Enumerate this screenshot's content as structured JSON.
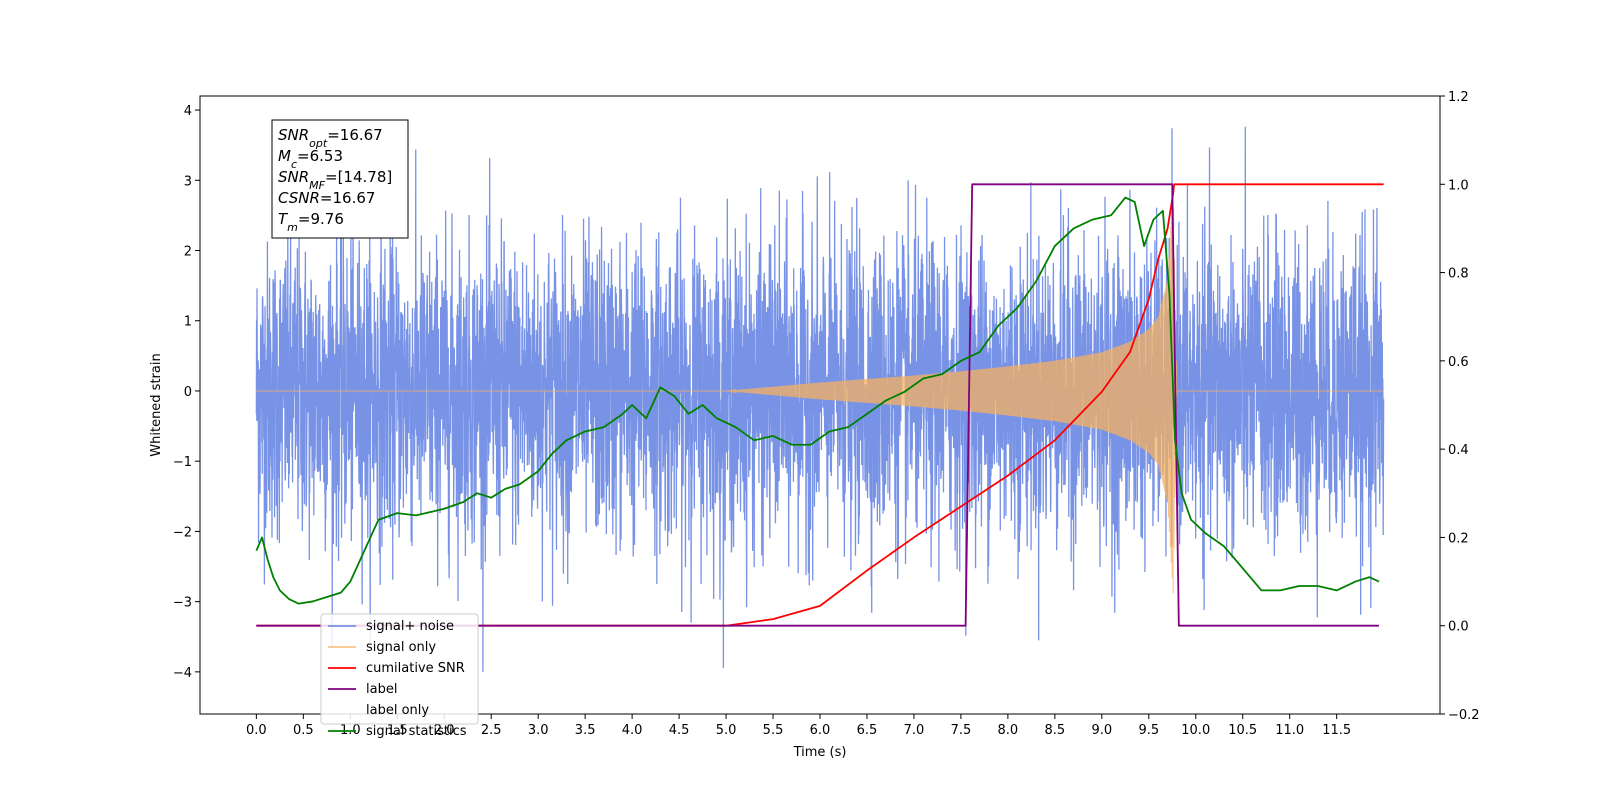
{
  "chart_data": {
    "type": "line",
    "xlabel": "Time (s)",
    "ylabel": "Whitened strain",
    "xlim": [
      -0.6,
      12.6
    ],
    "ylim": [
      -4.6,
      4.2
    ],
    "y2lim": [
      -0.2,
      1.2
    ],
    "x_ticks": [
      0.0,
      0.5,
      1.0,
      1.5,
      2.0,
      2.5,
      3.0,
      3.5,
      4.0,
      4.5,
      5.0,
      5.5,
      6.0,
      6.5,
      7.0,
      7.5,
      8.0,
      8.5,
      9.0,
      9.5,
      10.0,
      10.5,
      11.0,
      11.5
    ],
    "x_tick_labels": [
      "0.0",
      "0.5",
      "1.0",
      "1.5",
      "2.0",
      "2.5",
      "3.0",
      "3.5",
      "4.0",
      "4.5",
      "5.0",
      "5.5",
      "6.0",
      "6.5",
      "7.0",
      "7.5",
      "8.0",
      "8.5",
      "9.0",
      "9.5",
      "10.0",
      "10.5",
      "11.0",
      "11.5"
    ],
    "y_ticks": [
      -4,
      -3,
      -2,
      -1,
      0,
      1,
      2,
      3,
      4
    ],
    "y_tick_labels": [
      "−4",
      "−3",
      "−2",
      "−1",
      "0",
      "1",
      "2",
      "3",
      "4"
    ],
    "y2_ticks": [
      -0.2,
      0.0,
      0.2,
      0.4,
      0.6,
      0.8,
      1.0,
      1.2
    ],
    "y2_tick_labels": [
      "−0.2",
      "0.0",
      "0.2",
      "0.4",
      "0.6",
      "0.8",
      "1.0",
      "1.2"
    ],
    "grid": false,
    "legend_position": "lower-left",
    "annotation": {
      "lines": [
        {
          "base": "SNR",
          "sub": "opt",
          "rest": "=16.67"
        },
        {
          "base": "M",
          "sub": "c",
          "rest": "=6.53"
        },
        {
          "base": "SNR",
          "sub": "MF",
          "rest": "=[14.78]"
        },
        {
          "base": "CSNR",
          "sub": "",
          "rest": "=16.67"
        },
        {
          "base": "T",
          "sub": "m",
          "rest": "=9.76"
        }
      ]
    },
    "series": [
      {
        "name": "signal+ noise",
        "axis": "left",
        "color": "#7893e6",
        "style": "noise",
        "x_range": [
          0.0,
          12.0
        ],
        "approx_std": 1.05,
        "approx_extremes": [
          -4.0,
          3.8
        ]
      },
      {
        "name": "signal only",
        "axis": "left",
        "color": "#f5b060",
        "style": "chirp",
        "envelope_x": [
          0.0,
          5.0,
          5.5,
          6.0,
          6.5,
          7.0,
          7.5,
          8.0,
          8.5,
          9.0,
          9.3,
          9.5,
          9.6,
          9.7,
          9.76,
          9.8,
          12.0
        ],
        "envelope_y": [
          0.0,
          0.0,
          0.06,
          0.12,
          0.17,
          0.22,
          0.28,
          0.35,
          0.43,
          0.55,
          0.7,
          0.88,
          1.05,
          1.6,
          2.9,
          0.0,
          0.0
        ]
      },
      {
        "name": "cumilative SNR",
        "axis": "right",
        "color": "#ff0000",
        "x": [
          0.0,
          5.0,
          5.5,
          6.0,
          6.5,
          7.0,
          7.5,
          8.0,
          8.5,
          9.0,
          9.3,
          9.5,
          9.6,
          9.7,
          9.76,
          9.77,
          12.0
        ],
        "y": [
          0.0,
          0.0,
          0.015,
          0.045,
          0.125,
          0.2,
          0.27,
          0.34,
          0.42,
          0.53,
          0.62,
          0.74,
          0.83,
          0.9,
          0.98,
          1.0,
          1.0
        ]
      },
      {
        "name": "label",
        "axis": "right",
        "color": "#800080",
        "x": [
          0.0,
          7.55,
          7.62,
          9.75,
          9.82,
          11.95
        ],
        "y": [
          0.0,
          0.0,
          1.0,
          1.0,
          0.0,
          0.0
        ]
      },
      {
        "name": "label only",
        "axis": "right",
        "color": "#ffffff",
        "x": [],
        "y": []
      },
      {
        "name": "signal statistics",
        "axis": "right",
        "color": "#008000",
        "x": [
          0.0,
          0.06,
          0.12,
          0.18,
          0.25,
          0.35,
          0.45,
          0.6,
          0.75,
          0.9,
          1.0,
          1.15,
          1.3,
          1.5,
          1.7,
          1.9,
          2.0,
          2.2,
          2.35,
          2.5,
          2.65,
          2.8,
          3.0,
          3.15,
          3.3,
          3.5,
          3.7,
          3.9,
          4.0,
          4.15,
          4.3,
          4.45,
          4.6,
          4.75,
          4.9,
          5.1,
          5.3,
          5.5,
          5.7,
          5.9,
          6.1,
          6.3,
          6.5,
          6.7,
          6.9,
          7.1,
          7.3,
          7.5,
          7.7,
          7.9,
          8.1,
          8.3,
          8.5,
          8.7,
          8.9,
          9.1,
          9.25,
          9.35,
          9.45,
          9.55,
          9.65,
          9.72,
          9.78,
          9.85,
          9.95,
          10.1,
          10.3,
          10.5,
          10.7,
          10.9,
          11.1,
          11.3,
          11.5,
          11.7,
          11.85,
          11.95
        ],
        "y": [
          0.17,
          0.2,
          0.15,
          0.11,
          0.08,
          0.06,
          0.05,
          0.055,
          0.065,
          0.075,
          0.1,
          0.17,
          0.24,
          0.255,
          0.25,
          0.26,
          0.265,
          0.28,
          0.3,
          0.29,
          0.31,
          0.32,
          0.35,
          0.39,
          0.42,
          0.44,
          0.45,
          0.48,
          0.5,
          0.47,
          0.54,
          0.52,
          0.48,
          0.5,
          0.47,
          0.45,
          0.42,
          0.43,
          0.41,
          0.41,
          0.44,
          0.45,
          0.48,
          0.51,
          0.53,
          0.56,
          0.57,
          0.6,
          0.62,
          0.68,
          0.72,
          0.78,
          0.86,
          0.9,
          0.92,
          0.93,
          0.97,
          0.96,
          0.86,
          0.92,
          0.94,
          0.75,
          0.42,
          0.3,
          0.24,
          0.21,
          0.18,
          0.13,
          0.08,
          0.08,
          0.09,
          0.09,
          0.08,
          0.1,
          0.11,
          0.1
        ]
      }
    ]
  }
}
